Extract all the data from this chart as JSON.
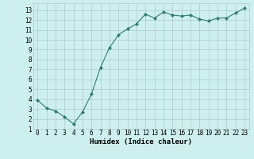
{
  "x": [
    0,
    1,
    2,
    3,
    4,
    5,
    6,
    7,
    8,
    9,
    10,
    11,
    12,
    13,
    14,
    15,
    16,
    17,
    18,
    19,
    20,
    21,
    22,
    23
  ],
  "y": [
    3.9,
    3.1,
    2.8,
    2.2,
    1.5,
    2.7,
    4.5,
    7.2,
    9.2,
    10.5,
    11.1,
    11.6,
    12.6,
    12.2,
    12.8,
    12.5,
    12.4,
    12.5,
    12.1,
    11.9,
    12.2,
    12.2,
    12.7,
    13.2
  ],
  "line_color": "#2d7d6e",
  "marker": "D",
  "marker_size": 2.0,
  "bg_color": "#cdf0ee",
  "grid_color": "#b0c8c8",
  "xlabel": "Humidex (Indice chaleur)",
  "xlabel_fontsize": 6.5,
  "tick_fontsize": 5.5,
  "xlim": [
    -0.5,
    23.5
  ],
  "ylim": [
    1,
    13.7
  ],
  "yticks": [
    1,
    2,
    3,
    4,
    5,
    6,
    7,
    8,
    9,
    10,
    11,
    12,
    13
  ],
  "xticks": [
    0,
    1,
    2,
    3,
    4,
    5,
    6,
    7,
    8,
    9,
    10,
    11,
    12,
    13,
    14,
    15,
    16,
    17,
    18,
    19,
    20,
    21,
    22,
    23
  ]
}
